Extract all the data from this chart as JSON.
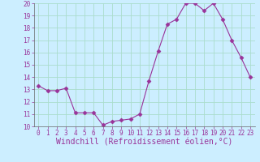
{
  "x": [
    0,
    1,
    2,
    3,
    4,
    5,
    6,
    7,
    8,
    9,
    10,
    11,
    12,
    13,
    14,
    15,
    16,
    17,
    18,
    19,
    20,
    21,
    22,
    23
  ],
  "y": [
    13.3,
    12.9,
    12.9,
    13.1,
    11.1,
    11.1,
    11.1,
    10.1,
    10.4,
    10.5,
    10.6,
    11.0,
    13.7,
    16.1,
    18.3,
    18.7,
    20.0,
    20.0,
    19.4,
    20.0,
    18.7,
    17.0,
    15.6,
    14.0
  ],
  "line_color": "#993399",
  "marker": "D",
  "marker_size": 2.5,
  "bg_color": "#cceeff",
  "grid_color": "#aaddcc",
  "xlabel": "Windchill (Refroidissement éolien,°C)",
  "xlabel_color": "#993399",
  "ylim": [
    10,
    20
  ],
  "xlim": [
    -0.5,
    23.5
  ],
  "yticks": [
    10,
    11,
    12,
    13,
    14,
    15,
    16,
    17,
    18,
    19,
    20
  ],
  "xticks": [
    0,
    1,
    2,
    3,
    4,
    5,
    6,
    7,
    8,
    9,
    10,
    11,
    12,
    13,
    14,
    15,
    16,
    17,
    18,
    19,
    20,
    21,
    22,
    23
  ],
  "tick_label_color": "#993399",
  "tick_label_size": 5.5,
  "xlabel_size": 7.0,
  "xlabel_fontfamily": "monospace",
  "tick_fontfamily": "monospace"
}
